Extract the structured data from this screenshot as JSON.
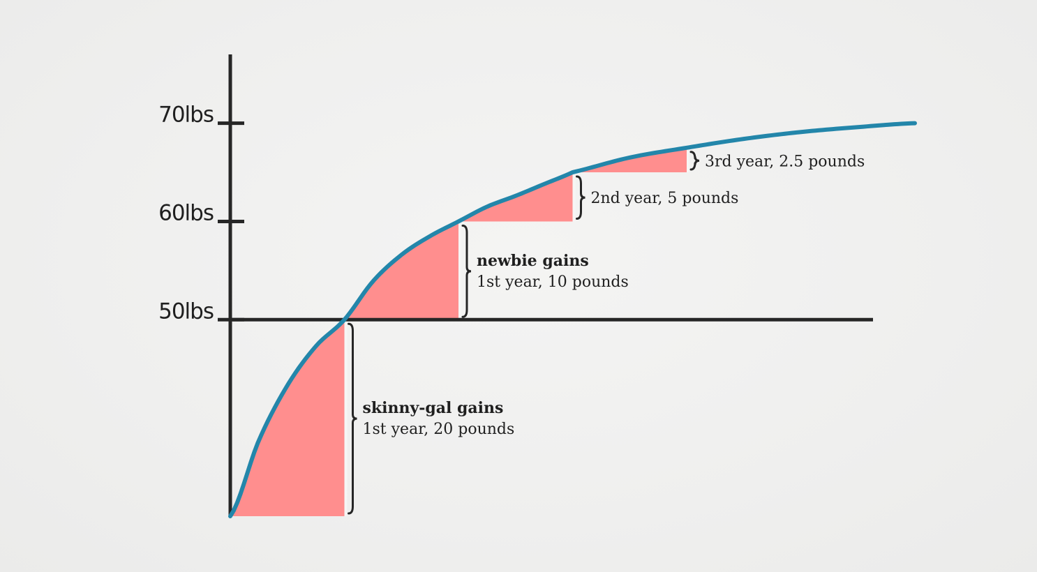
{
  "chart_data": {
    "type": "area",
    "title": "",
    "xlabel": "",
    "ylabel": "",
    "ylim": [
      30,
      77
    ],
    "yticks": [
      {
        "value": 70,
        "label": "70lbs"
      },
      {
        "value": 60,
        "label": "60lbs"
      },
      {
        "value": 50,
        "label": "50lbs"
      }
    ],
    "curve": {
      "x": [
        0,
        0.25,
        0.5,
        0.75,
        1.0,
        1.25,
        1.5,
        1.75,
        2.0,
        2.25,
        2.5,
        2.75,
        3.0,
        3.5,
        4.0,
        4.5,
        5.0,
        5.5,
        6.0
      ],
      "y": [
        30.0,
        37.7,
        43.3,
        47.3,
        50.0,
        53.9,
        56.6,
        58.5,
        60.0,
        61.5,
        62.6,
        63.8,
        65.0,
        66.5,
        67.5,
        68.4,
        69.1,
        69.6,
        70.0
      ]
    },
    "series_color": "#2386aa",
    "fill_color": "#ff8e8e",
    "segments": [
      {
        "x0": 0,
        "x1": 1,
        "y0": 30,
        "y1": 50,
        "title": "skinny-gal gains",
        "text": "1st year, 20 pounds"
      },
      {
        "x0": 1,
        "x1": 2,
        "y0": 50,
        "y1": 60,
        "title": "newbie gains",
        "text": "1st year, 10 pounds"
      },
      {
        "x0": 2,
        "x1": 3,
        "y0": 60,
        "y1": 65,
        "title": "",
        "text": "2nd year, 5 pounds"
      },
      {
        "x0": 3,
        "x1": 4,
        "y0": 65,
        "y1": 67.5,
        "title": "",
        "text": "3rd year, 2.5 pounds"
      }
    ]
  }
}
